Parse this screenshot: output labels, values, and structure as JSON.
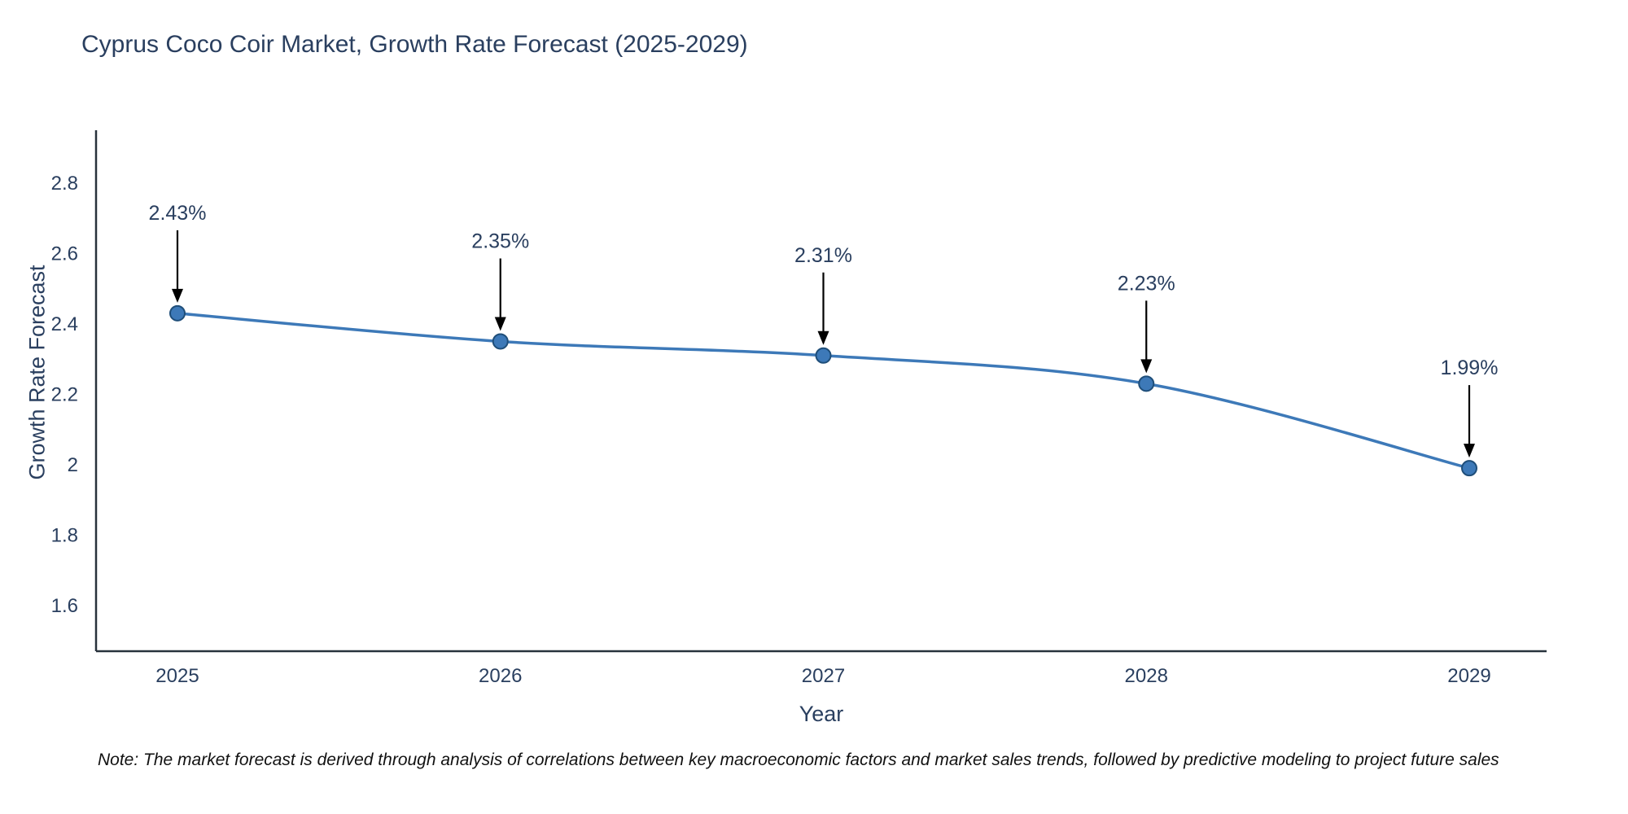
{
  "chart_data": {
    "type": "line",
    "title": "Cyprus Coco Coir Market, Growth Rate Forecast (2025-2029)",
    "xlabel": "Year",
    "ylabel": "Growth Rate Forecast",
    "categories": [
      "2025",
      "2026",
      "2027",
      "2028",
      "2029"
    ],
    "values": [
      2.43,
      2.35,
      2.31,
      2.23,
      1.99
    ],
    "point_labels": [
      "2.43%",
      "2.35%",
      "2.31%",
      "2.23%",
      "1.99%"
    ],
    "y_ticks": [
      1.6,
      1.8,
      2,
      2.2,
      2.4,
      2.6,
      2.8
    ],
    "ylim": [
      1.47,
      2.95
    ],
    "grid": false,
    "legend": "none",
    "line_color": "#3d79b8",
    "marker_color": "#3d79b8",
    "marker_edge_color": "#1f4e79",
    "axis_color": "#28323c",
    "text_color": "#2a3f5f",
    "annotation_color": "#2a3f5f",
    "arrow_color": "#000000"
  },
  "note": "Note: The market forecast is derived through analysis of correlations between key macroeconomic factors and market sales trends, followed by predictive modeling to project future sales"
}
